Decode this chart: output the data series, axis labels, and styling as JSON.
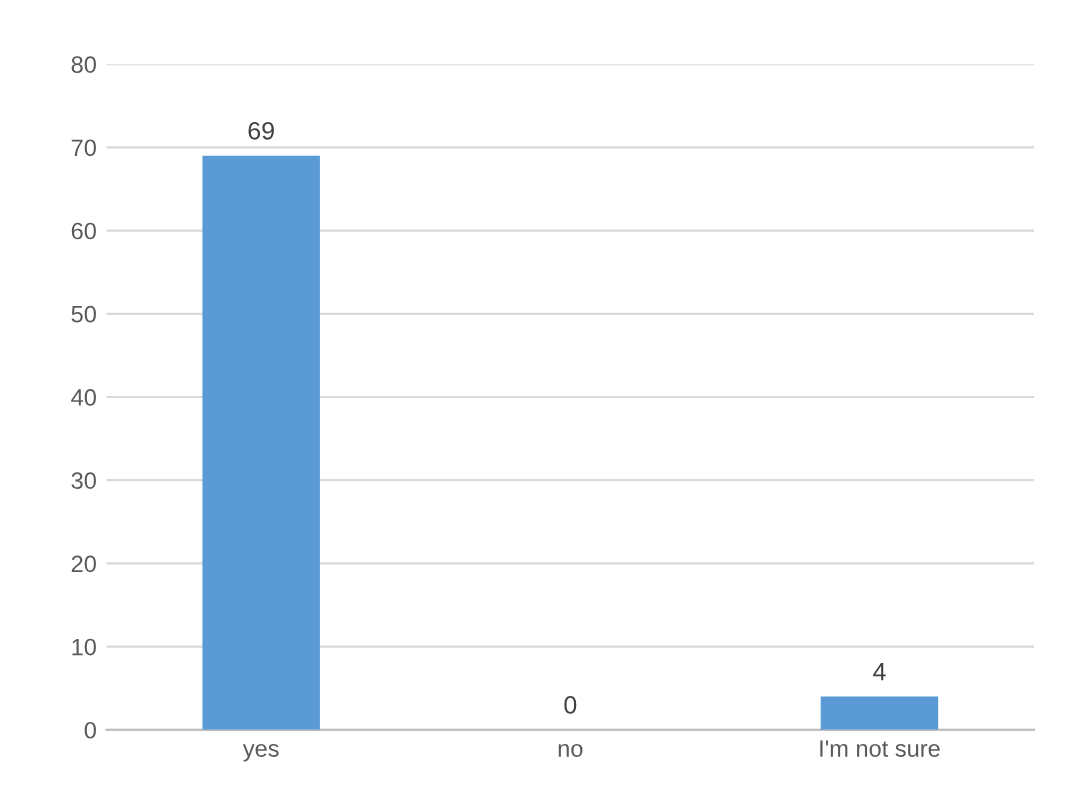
{
  "chart_data": {
    "type": "bar",
    "categories": [
      "yes",
      "no",
      "I'm not sure"
    ],
    "values": [
      69,
      0,
      4
    ],
    "color": "#5b9bd5",
    "ylim": [
      0,
      80
    ],
    "yticks": [
      0,
      10,
      20,
      30,
      40,
      50,
      60,
      70,
      80
    ],
    "grid": "y",
    "data_labels": true
  }
}
